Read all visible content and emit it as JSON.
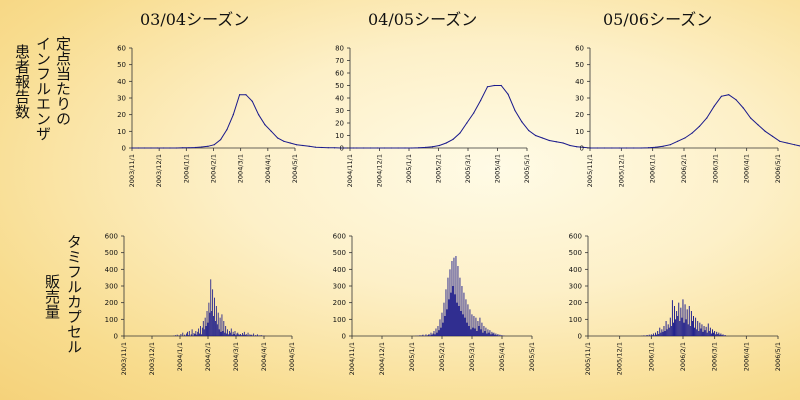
{
  "season_titles": [
    "03/04シーズン",
    "04/05シーズン",
    "05/06シーズン"
  ],
  "row_labels": {
    "influenza": [
      "定点当たりの",
      "インフルエンザ",
      "患者報告数"
    ],
    "tamiflu": [
      "タミフルカプセル",
      "販売量"
    ]
  },
  "colors": {
    "line": "#1a1a8c",
    "axis": "#333333",
    "background": "#fdf0c8"
  },
  "chart_data": [
    {
      "type": "line",
      "row": "influenza",
      "season": "03/04シーズン",
      "x_ticks": [
        "2003/11/1",
        "2003/12/1",
        "2004/1/1",
        "2004/2/1",
        "2004/3/1",
        "2004/4/1",
        "2004/5/1"
      ],
      "y_ticks": [
        0,
        10,
        20,
        30,
        40,
        50,
        60
      ],
      "ylim": [
        0,
        60
      ],
      "x_start": 0,
      "x_step": 0.233,
      "values": [
        0,
        0,
        0,
        0,
        0,
        0,
        0,
        0,
        0.1,
        0.2,
        0.3,
        0.6,
        1,
        2,
        5,
        11,
        20,
        32,
        32,
        28,
        20,
        14,
        10,
        6,
        4,
        3,
        2,
        1.5,
        1,
        0.5,
        0.3,
        0.2,
        0.1,
        0,
        0,
        0
      ]
    },
    {
      "type": "line",
      "row": "influenza",
      "season": "04/05シーズン",
      "x_ticks": [
        "2004/11/1",
        "2004/12/1",
        "2005/1/1",
        "2005/2/1",
        "2005/3/1",
        "2005/4/1",
        "2005/5/1"
      ],
      "y_ticks": [
        0,
        10,
        20,
        30,
        40,
        50,
        60,
        70,
        80
      ],
      "ylim": [
        0,
        80
      ],
      "x_start": 0,
      "x_step": 0.233,
      "values": [
        0,
        0,
        0,
        0,
        0,
        0,
        0,
        0,
        0,
        0,
        0.2,
        0.5,
        1,
        2,
        4,
        7,
        12,
        20,
        28,
        38,
        49,
        50,
        50,
        43,
        30,
        21,
        14,
        10,
        8,
        6,
        5,
        4,
        2,
        1,
        0.5,
        0
      ]
    },
    {
      "type": "line",
      "row": "influenza",
      "season": "05/06シーズン",
      "x_ticks": [
        "2005/11/1",
        "2005/12/1",
        "2006/1/1",
        "2006/2/1",
        "2006/3/1",
        "2006/4/1",
        "2006/5/1"
      ],
      "y_ticks": [
        0,
        10,
        20,
        30,
        40,
        50,
        60
      ],
      "ylim": [
        0,
        60
      ],
      "x_start": 0,
      "x_step": 0.233,
      "values": [
        0,
        0,
        0,
        0,
        0,
        0,
        0,
        0,
        0.2,
        0.5,
        1,
        2,
        4,
        6,
        9,
        13,
        18,
        25,
        31,
        32,
        29,
        24,
        18,
        14,
        10,
        7,
        4,
        3,
        2,
        1,
        0.5,
        0.2,
        0,
        0,
        0,
        0
      ]
    },
    {
      "type": "bar",
      "row": "tamiflu",
      "season": "03/04シーズン",
      "x_ticks": [
        "2003/11/1",
        "2003/12/1",
        "2004/1/1",
        "2004/2/1",
        "2004/3/1",
        "2004/4/1",
        "2004/5/1"
      ],
      "y_ticks": [
        0,
        100,
        200,
        300,
        400,
        500,
        600
      ],
      "ylim": [
        0,
        600
      ],
      "x_start": 1.5,
      "x_step": 0.0333,
      "values": [
        0,
        0,
        0,
        0,
        0,
        0,
        0,
        0,
        2,
        0,
        5,
        0,
        8,
        0,
        4,
        0,
        12,
        0,
        20,
        0,
        8,
        3,
        15,
        25,
        5,
        30,
        0,
        10,
        40,
        2,
        18,
        12,
        30,
        8,
        25,
        45,
        15,
        60,
        10,
        50,
        90,
        40,
        110,
        60,
        150,
        80,
        200,
        140,
        340,
        150,
        280,
        120,
        230,
        90,
        180,
        70,
        140,
        40,
        110,
        25,
        130,
        30,
        90,
        20,
        60,
        15,
        40,
        10,
        30,
        20,
        45,
        8,
        25,
        12,
        30,
        5,
        15,
        20,
        10,
        8,
        12,
        5,
        18,
        8,
        25,
        6,
        12,
        4,
        20,
        3,
        10,
        5,
        8,
        2,
        15,
        0,
        5,
        3,
        10,
        2,
        4,
        0,
        6,
        0,
        3,
        0,
        2,
        0,
        0,
        0
      ]
    },
    {
      "type": "bar",
      "row": "tamiflu",
      "season": "04/05シーズン",
      "x_ticks": [
        "2004/11/1",
        "2004/12/1",
        "2005/1/1",
        "2005/2/1",
        "2005/3/1",
        "2005/4/1",
        "2005/5/1"
      ],
      "y_ticks": [
        0,
        100,
        200,
        300,
        400,
        500,
        600
      ],
      "ylim": [
        0,
        600
      ],
      "x_start": 2.0,
      "x_step": 0.0333,
      "values": [
        0,
        0,
        0,
        0,
        2,
        0,
        3,
        0,
        5,
        0,
        4,
        8,
        0,
        3,
        10,
        0,
        6,
        12,
        4,
        20,
        8,
        15,
        30,
        10,
        45,
        20,
        60,
        35,
        100,
        50,
        140,
        80,
        200,
        120,
        280,
        160,
        350,
        220,
        400,
        260,
        450,
        300,
        470,
        250,
        480,
        200,
        420,
        180,
        350,
        150,
        300,
        130,
        260,
        110,
        220,
        80,
        190,
        60,
        160,
        40,
        130,
        50,
        120,
        45,
        110,
        30,
        90,
        60,
        110,
        40,
        80,
        20,
        60,
        30,
        50,
        15,
        40,
        20,
        35,
        10,
        25,
        15,
        20,
        8,
        15,
        5,
        12,
        3,
        8,
        2,
        5,
        0,
        3,
        0
      ]
    },
    {
      "type": "bar",
      "row": "tamiflu",
      "season": "05/06シーズン",
      "x_ticks": [
        "2005/11/1",
        "2005/12/1",
        "2006/1/1",
        "2006/2/1",
        "2006/3/1",
        "2006/4/1",
        "2006/5/1"
      ],
      "y_ticks": [
        0,
        100,
        200,
        300,
        400,
        500,
        600
      ],
      "ylim": [
        0,
        600
      ],
      "x_start": 1.6,
      "x_step": 0.0333,
      "values": [
        0,
        0,
        0,
        2,
        0,
        4,
        0,
        3,
        6,
        0,
        8,
        2,
        10,
        5,
        15,
        4,
        20,
        8,
        30,
        12,
        50,
        20,
        40,
        25,
        60,
        30,
        90,
        40,
        70,
        50,
        110,
        60,
        215,
        80,
        180,
        100,
        150,
        120,
        200,
        90,
        170,
        110,
        220,
        80,
        190,
        100,
        160,
        70,
        180,
        60,
        150,
        90,
        120,
        50,
        110,
        40,
        90,
        30,
        80,
        45,
        70,
        25,
        60,
        35,
        55,
        20,
        75,
        30,
        50,
        15,
        40,
        20,
        30,
        10,
        25,
        12,
        20,
        8,
        15,
        5,
        10,
        3,
        6,
        0
      ]
    }
  ]
}
